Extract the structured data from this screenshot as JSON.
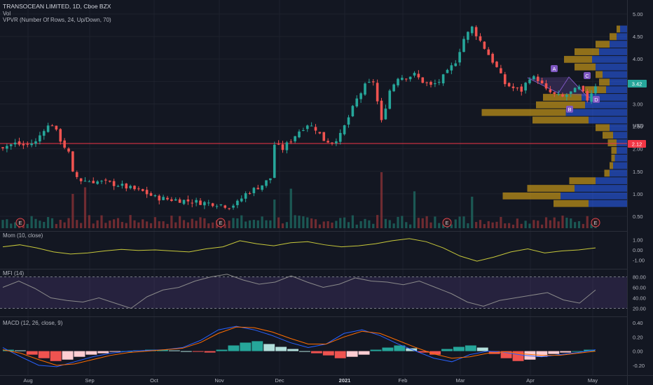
{
  "header": {
    "symbol_line": "TRANSOCEAN LIMITED, 1D, Cboe BZX",
    "vol_label": "Vol",
    "vpvr_label": "VPVR (Number Of Rows, 24, Up/Down, 70)"
  },
  "price_scale": {
    "ticks": [
      "5.00",
      "4.50",
      "4.00",
      "3.50",
      "3.00",
      "2.50",
      "2.00",
      "1.50",
      "1.00",
      "0.50"
    ],
    "currency": "USD",
    "current_price_label": "3.42",
    "hline_label": "2.12"
  },
  "patterns": {
    "letters": [
      "A",
      "B",
      "C",
      "D"
    ]
  },
  "earnings_marker": "E",
  "mom": {
    "label": "Mom (10, close)",
    "ticks": [
      "1.00",
      "0.00",
      "-1.00"
    ]
  },
  "mfi": {
    "label": "MFI (14)",
    "ticks": [
      "80.00",
      "60.00",
      "40.00",
      "20.00"
    ]
  },
  "macd": {
    "label": "MACD (12, 26, close, 9)",
    "ticks": [
      "0.40",
      "0.20",
      "0.00",
      "-0.20"
    ]
  },
  "time_axis": {
    "labels": [
      "Aug",
      "Sep",
      "Oct",
      "Nov",
      "Dec",
      "2021",
      "Feb",
      "Mar",
      "Apr",
      "May"
    ]
  },
  "colors": {
    "background": "#131722",
    "up": "#26a69a",
    "down": "#ef5350",
    "grid": "#1e222d",
    "text": "#b2b5be",
    "hline": "#f23645",
    "vp_up": "#2962ff",
    "vp_down": "#d4a017",
    "momentum": "#c7c83a",
    "mfi": "#8a8a8a",
    "mfi_band": "#7e57c2",
    "macd": "#2962ff",
    "signal": "#ff6d00"
  },
  "chart_data": [
    {
      "type": "candlestick",
      "title": "TRANSOCEAN LIMITED, 1D, Cboe BZX",
      "ylabel": "USD",
      "ylim": [
        0.3,
        5.1
      ],
      "x": [
        "Aug",
        "Sep",
        "Oct",
        "Nov",
        "Dec",
        "2021",
        "Feb",
        "Mar",
        "Apr",
        "May"
      ],
      "close_path": [
        [
          0,
          2.05
        ],
        [
          3,
          2.12
        ],
        [
          5,
          2.08
        ],
        [
          8,
          2.15
        ],
        [
          10,
          2.45
        ],
        [
          12,
          2.55
        ],
        [
          14,
          2.2
        ],
        [
          16,
          1.9
        ],
        [
          17,
          1.45
        ],
        [
          19,
          1.3
        ],
        [
          22,
          1.28
        ],
        [
          25,
          1.25
        ],
        [
          28,
          1.2
        ],
        [
          31,
          1.12
        ],
        [
          34,
          1.05
        ],
        [
          37,
          0.92
        ],
        [
          40,
          0.88
        ],
        [
          43,
          0.86
        ],
        [
          46,
          0.83
        ],
        [
          49,
          0.8
        ],
        [
          52,
          0.78
        ],
        [
          55,
          0.72
        ],
        [
          57,
          0.8
        ],
        [
          59,
          1.0
        ],
        [
          61,
          1.1
        ],
        [
          63,
          1.2
        ],
        [
          65,
          1.35
        ],
        [
          66,
          2.1
        ],
        [
          68,
          2.0
        ],
        [
          70,
          2.2
        ],
        [
          72,
          2.4
        ],
        [
          74,
          2.55
        ],
        [
          76,
          2.45
        ],
        [
          78,
          2.2
        ],
        [
          80,
          2.15
        ],
        [
          82,
          2.3
        ],
        [
          84,
          2.7
        ],
        [
          86,
          3.1
        ],
        [
          88,
          3.4
        ],
        [
          90,
          3.5
        ],
        [
          92,
          2.6
        ],
        [
          94,
          3.3
        ],
        [
          96,
          3.6
        ],
        [
          98,
          3.6
        ],
        [
          100,
          3.65
        ],
        [
          102,
          3.5
        ],
        [
          104,
          3.4
        ],
        [
          106,
          3.5
        ],
        [
          108,
          3.7
        ],
        [
          110,
          3.95
        ],
        [
          112,
          4.45
        ],
        [
          114,
          4.7
        ],
        [
          116,
          4.4
        ],
        [
          118,
          4.1
        ],
        [
          120,
          3.8
        ],
        [
          122,
          3.45
        ],
        [
          124,
          3.35
        ],
        [
          126,
          3.3
        ],
        [
          128,
          3.6
        ],
        [
          130,
          3.55
        ],
        [
          132,
          3.3
        ],
        [
          134,
          3.2
        ],
        [
          136,
          3.15
        ],
        [
          138,
          3.25
        ],
        [
          140,
          3.35
        ],
        [
          142,
          3.1
        ],
        [
          144,
          3.42
        ]
      ],
      "current_price": 3.42,
      "horizontal_line": 2.12
    },
    {
      "type": "bar",
      "title": "VPVR (Number Of Rows, 24, Up/Down, 70)",
      "price_range": [
        0.7,
        4.75
      ],
      "rows": 24,
      "up_fraction": [
        0.22,
        0.38,
        0.3,
        0.18,
        0.1,
        0.08,
        0.07,
        0.06,
        0.06,
        0.08,
        0.1,
        0.22,
        0.35,
        0.24,
        0.26,
        0.12,
        0.1,
        0.14,
        0.18,
        0.2,
        0.16,
        0.1,
        0.06,
        0.04
      ],
      "down_fraction": [
        0.2,
        0.33,
        0.27,
        0.15,
        0.03,
        0.02,
        0.02,
        0.03,
        0.05,
        0.06,
        0.08,
        0.32,
        0.48,
        0.28,
        0.22,
        0.12,
        0.06,
        0.04,
        0.12,
        0.16,
        0.14,
        0.08,
        0.04,
        0.02
      ]
    },
    {
      "type": "line",
      "title": "Mom (10, close)",
      "ylim": [
        -1.3,
        1.3
      ],
      "y": [
        0.3,
        0.5,
        0.2,
        -0.2,
        -0.4,
        -0.3,
        -0.1,
        0.05,
        -0.05,
        0.0,
        -0.1,
        -0.2,
        0.1,
        0.3,
        0.9,
        0.6,
        0.4,
        0.7,
        0.8,
        0.5,
        0.3,
        0.4,
        0.6,
        0.9,
        1.1,
        0.8,
        0.2,
        -0.6,
        -1.1,
        -0.7,
        -0.2,
        0.1,
        -0.3,
        -0.1,
        0.0,
        0.2
      ]
    },
    {
      "type": "line",
      "title": "MFI (14)",
      "ylim": [
        10,
        90
      ],
      "bands": [
        20,
        80
      ],
      "y": [
        60,
        72,
        58,
        40,
        35,
        32,
        40,
        30,
        20,
        42,
        55,
        60,
        72,
        80,
        85,
        74,
        66,
        70,
        82,
        70,
        60,
        66,
        78,
        72,
        70,
        65,
        72,
        60,
        48,
        32,
        24,
        35,
        40,
        45,
        50,
        36,
        30,
        55
      ]
    },
    {
      "type": "bar",
      "title": "MACD (12, 26, close, 9)",
      "ylim": [
        -0.3,
        0.45
      ],
      "histogram": [
        0.02,
        0.01,
        -0.05,
        -0.1,
        -0.14,
        -0.12,
        -0.08,
        -0.05,
        -0.03,
        -0.01,
        0.0,
        0.01,
        0.02,
        0.02,
        0.01,
        0.0,
        -0.01,
        -0.02,
        0.02,
        0.08,
        0.12,
        0.14,
        0.1,
        0.06,
        0.03,
        0.0,
        -0.03,
        -0.06,
        -0.1,
        -0.08,
        -0.05,
        0.02,
        0.05,
        0.08,
        0.04,
        -0.02,
        -0.05,
        0.03,
        0.06,
        0.08,
        0.05,
        -0.04,
        -0.1,
        -0.14,
        -0.12,
        -0.08,
        -0.04,
        -0.02,
        0.0,
        0.02
      ],
      "macd_line": [
        0.05,
        -0.08,
        -0.2,
        -0.22,
        -0.15,
        -0.08,
        -0.03,
        0.0,
        0.01,
        0.02,
        0.05,
        0.15,
        0.3,
        0.35,
        0.3,
        0.22,
        0.12,
        0.05,
        0.1,
        0.25,
        0.3,
        0.22,
        0.1,
        0.0,
        -0.1,
        -0.15,
        -0.05,
        0.0,
        -0.02,
        -0.06,
        -0.08,
        -0.05,
        -0.02,
        0.02
      ],
      "signal_line": [
        0.02,
        -0.03,
        -0.12,
        -0.2,
        -0.18,
        -0.12,
        -0.06,
        -0.02,
        0.0,
        0.02,
        0.04,
        0.12,
        0.25,
        0.34,
        0.33,
        0.27,
        0.18,
        0.1,
        0.1,
        0.2,
        0.28,
        0.25,
        0.15,
        0.05,
        -0.04,
        -0.1,
        -0.08,
        -0.03,
        -0.01,
        -0.04,
        -0.06,
        -0.06,
        -0.03,
        0.0
      ]
    }
  ]
}
